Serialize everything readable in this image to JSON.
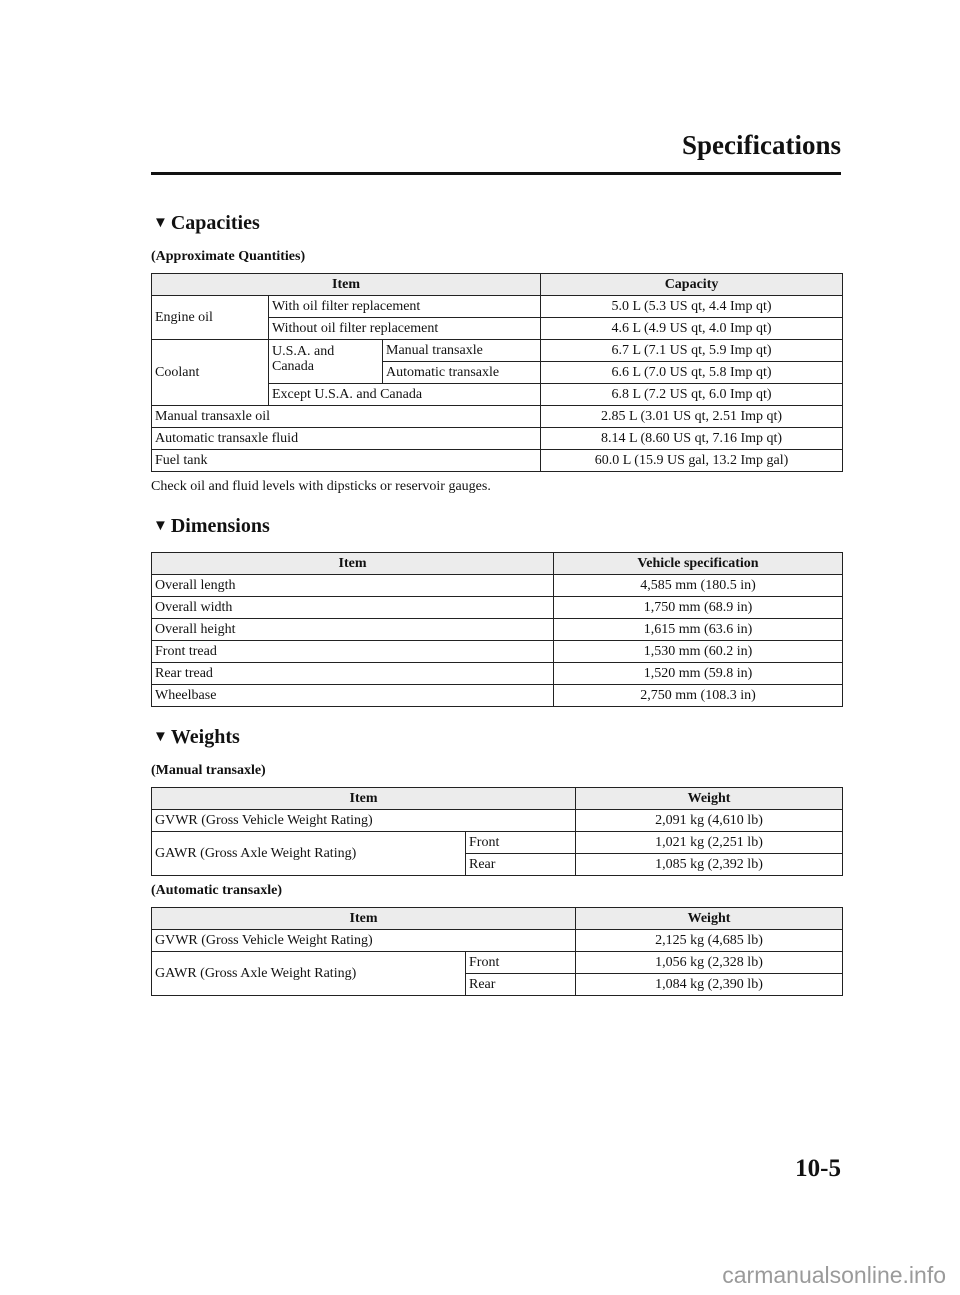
{
  "header": {
    "title": "Specifications"
  },
  "capacities": {
    "heading": "Capacities",
    "subtitle": "(Approximate Quantities)",
    "columns": [
      "Item",
      "Capacity"
    ],
    "engine_oil": {
      "label": "Engine oil",
      "rows": [
        {
          "item": "With oil filter replacement",
          "value": "5.0 L (5.3 US qt, 4.4 Imp qt)"
        },
        {
          "item": "Without oil filter replacement",
          "value": "4.6 L (4.9 US qt, 4.0 Imp qt)"
        }
      ]
    },
    "coolant": {
      "label": "Coolant",
      "region": "U.S.A. and Canada",
      "rows": [
        {
          "item": "Manual transaxle",
          "value": "6.7 L (7.1 US qt, 5.9 Imp qt)"
        },
        {
          "item": "Automatic transaxle",
          "value": "6.6 L (7.0 US qt, 5.8 Imp qt)"
        },
        {
          "item": "Except U.S.A. and Canada",
          "value": "6.8 L (7.2 US qt, 6.0 Imp qt)"
        }
      ]
    },
    "others": [
      {
        "item": "Manual transaxle oil",
        "value": "2.85 L (3.01 US qt, 2.51 Imp qt)"
      },
      {
        "item": "Automatic transaxle fluid",
        "value": "8.14 L (8.60 US qt, 7.16 Imp qt)"
      },
      {
        "item": "Fuel tank",
        "value": "60.0 L (15.9 US gal, 13.2 Imp gal)"
      }
    ],
    "note": "Check oil and fluid levels with dipsticks or reservoir gauges."
  },
  "dimensions": {
    "heading": "Dimensions",
    "columns": [
      "Item",
      "Vehicle specification"
    ],
    "rows": [
      {
        "item": "Overall length",
        "value": "4,585 mm (180.5 in)"
      },
      {
        "item": "Overall width",
        "value": "1,750 mm (68.9 in)"
      },
      {
        "item": "Overall height",
        "value": "1,615 mm (63.6 in)"
      },
      {
        "item": "Front tread",
        "value": "1,530 mm (60.2 in)"
      },
      {
        "item": "Rear tread",
        "value": "1,520 mm (59.8 in)"
      },
      {
        "item": "Wheelbase",
        "value": "2,750 mm (108.3 in)"
      }
    ]
  },
  "weights": {
    "heading": "Weights",
    "columns": [
      "Item",
      "Weight"
    ],
    "manual": {
      "subtitle": "(Manual transaxle)",
      "gvwr": {
        "item": "GVWR (Gross Vehicle Weight Rating)",
        "value": "2,091 kg (4,610 lb)"
      },
      "gawr": {
        "item": "GAWR (Gross Axle Weight Rating)",
        "front_label": "Front",
        "front": "1,021 kg (2,251 lb)",
        "rear_label": "Rear",
        "rear": "1,085 kg (2,392 lb)"
      }
    },
    "automatic": {
      "subtitle": "(Automatic transaxle)",
      "gvwr": {
        "item": "GVWR (Gross Vehicle Weight Rating)",
        "value": "2,125 kg (4,685 lb)"
      },
      "gawr": {
        "item": "GAWR (Gross Axle Weight Rating)",
        "front_label": "Front",
        "front": "1,056 kg (2,328 lb)",
        "rear_label": "Rear",
        "rear": "1,084 kg (2,390 lb)"
      }
    }
  },
  "footer": {
    "page_number": "10-5",
    "watermark": "carmanualsonline.info"
  }
}
